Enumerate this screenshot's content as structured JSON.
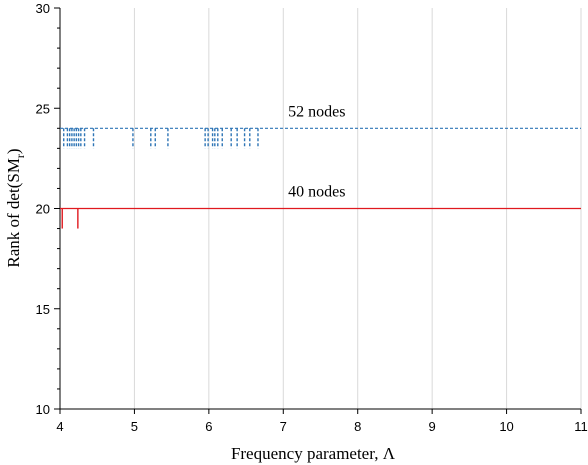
{
  "chart_data": {
    "type": "line",
    "xlabel": "Frequency parameter, Λ",
    "ylabel_main": "Rank of  det(SM",
    "ylabel_sub": "r",
    "ylabel_close": ")",
    "xlim": [
      4,
      11
    ],
    "ylim": [
      10,
      30
    ],
    "xticks": [
      4,
      5,
      6,
      7,
      8,
      9,
      10,
      11
    ],
    "yticks": [
      10,
      15,
      20,
      25,
      30
    ],
    "grid": "vertical",
    "series": [
      {
        "name": "52 nodes",
        "color": "#2e75b6",
        "dash": "dotted",
        "baseline": 24,
        "dip_value": 23,
        "dips_x": [
          4.05,
          4.1,
          4.13,
          4.16,
          4.19,
          4.22,
          4.25,
          4.28,
          4.33,
          4.45,
          4.98,
          5.22,
          5.28,
          5.45,
          5.95,
          5.99,
          6.05,
          6.08,
          6.12,
          6.18,
          6.3,
          6.38,
          6.48,
          6.55,
          6.66
        ]
      },
      {
        "name": "40 nodes",
        "color": "#e0191f",
        "dash": "solid",
        "baseline": 20,
        "dip_value": 19,
        "dips_x": [
          4.03,
          4.24
        ]
      }
    ],
    "annotations": [
      {
        "text": "52 nodes",
        "x": 7.45,
        "y": 24.6
      },
      {
        "text": "40 nodes",
        "x": 7.45,
        "y": 20.6
      }
    ]
  }
}
